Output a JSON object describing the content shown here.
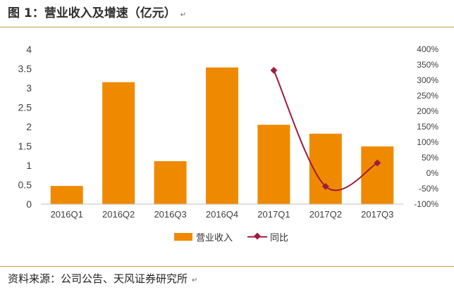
{
  "header": {
    "title": "图 1：营业收入及增速（亿元）",
    "mark": "↵"
  },
  "footer": {
    "source": "资料来源：公司公告、天风证券研究所",
    "mark": "↵"
  },
  "chart_data": {
    "type": "bar",
    "categories": [
      "2016Q1",
      "2016Q2",
      "2016Q3",
      "2016Q4",
      "2017Q1",
      "2017Q2",
      "2017Q3"
    ],
    "series": [
      {
        "name": "营业收入",
        "type": "bar",
        "axis": "left",
        "color": "#ef8a00",
        "values": [
          0.47,
          3.15,
          1.11,
          3.53,
          2.05,
          1.82,
          1.49
        ]
      },
      {
        "name": "同比",
        "type": "line",
        "axis": "right",
        "color": "#9e1d3c",
        "values": [
          null,
          null,
          null,
          null,
          332,
          -43,
          33
        ]
      }
    ],
    "ylim": [
      0,
      4
    ],
    "yticks": [
      "0",
      "0.5",
      "1",
      "1.5",
      "2",
      "2.5",
      "3",
      "3.5",
      "4"
    ],
    "y2lim": [
      -100,
      400
    ],
    "y2ticks": [
      "-100%",
      "-50%",
      "0%",
      "50%",
      "100%",
      "150%",
      "200%",
      "250%",
      "300%",
      "350%",
      "400%"
    ],
    "title": "",
    "xlabel": "",
    "ylabel": "",
    "legend": "bottom",
    "grid": false
  }
}
